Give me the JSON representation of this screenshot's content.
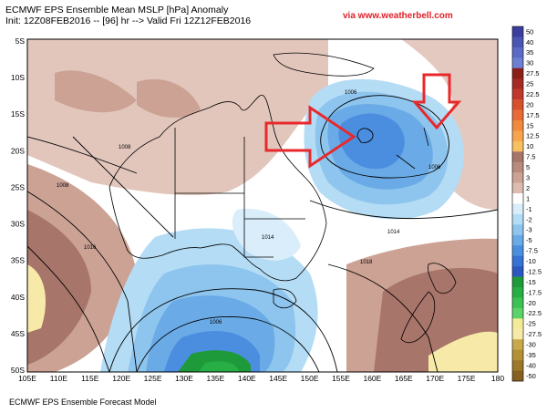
{
  "header": {
    "title": "ECMWF EPS Ensemble Mean MSLP [hPa] Anomaly",
    "subtitle": "Init: 12Z08FEB2016 -- [96] hr --> Valid Fri 12Z12FEB2016",
    "credit": "via www.weatherbell.com"
  },
  "footer": "ECMWF EPS Ensemble Forecast Model",
  "map": {
    "lat_labels": [
      "5S",
      "10S",
      "15S",
      "20S",
      "25S",
      "30S",
      "35S",
      "40S",
      "45S",
      "50S"
    ],
    "lon_labels": [
      "105E",
      "110E",
      "115E",
      "120E",
      "125E",
      "130E",
      "135E",
      "140E",
      "145E",
      "150E",
      "155E",
      "160E",
      "165E",
      "170E",
      "175E",
      "180"
    ],
    "isobar_labels": [
      "1006",
      "1006",
      "1006",
      "1008",
      "1014",
      "1016",
      "1014",
      "1018",
      "1008"
    ],
    "annotations": [
      "arrow-west-of-low",
      "arrow-north-of-low"
    ],
    "arrow_color": "#e8292b"
  },
  "colorbar": {
    "labels": [
      "50",
      "40",
      "35",
      "30",
      "27.5",
      "25",
      "22.5",
      "20",
      "17.5",
      "15",
      "12.5",
      "10",
      "7.5",
      "5",
      "3",
      "2",
      "1",
      "-1",
      "-2",
      "-3",
      "-5",
      "-7.5",
      "-10",
      "-12.5",
      "-15",
      "-17.5",
      "-20",
      "-22.5",
      "-25",
      "-27.5",
      "-30",
      "-35",
      "-40",
      "-50"
    ],
    "colors": [
      "#3a3f9e",
      "#4a55b4",
      "#5a6ac6",
      "#6c7fd3",
      "#8a2018",
      "#a52a22",
      "#c0382c",
      "#d8502e",
      "#e86a36",
      "#f18a3c",
      "#f6a44e",
      "#f9c060",
      "#a8756a",
      "#b98b7c",
      "#cba294",
      "#ddbcb0",
      "#ffffff",
      "#d9eefa",
      "#b4dcf5",
      "#8ec5ee",
      "#6aaae6",
      "#4b8edf",
      "#3572d4",
      "#2a58c0",
      "#1f9a3a",
      "#27ae45",
      "#3cc253",
      "#5ad46a",
      "#f2ec9a",
      "#f7eaa8",
      "#c8a84a",
      "#b39036",
      "#9c7828",
      "#856020"
    ]
  }
}
